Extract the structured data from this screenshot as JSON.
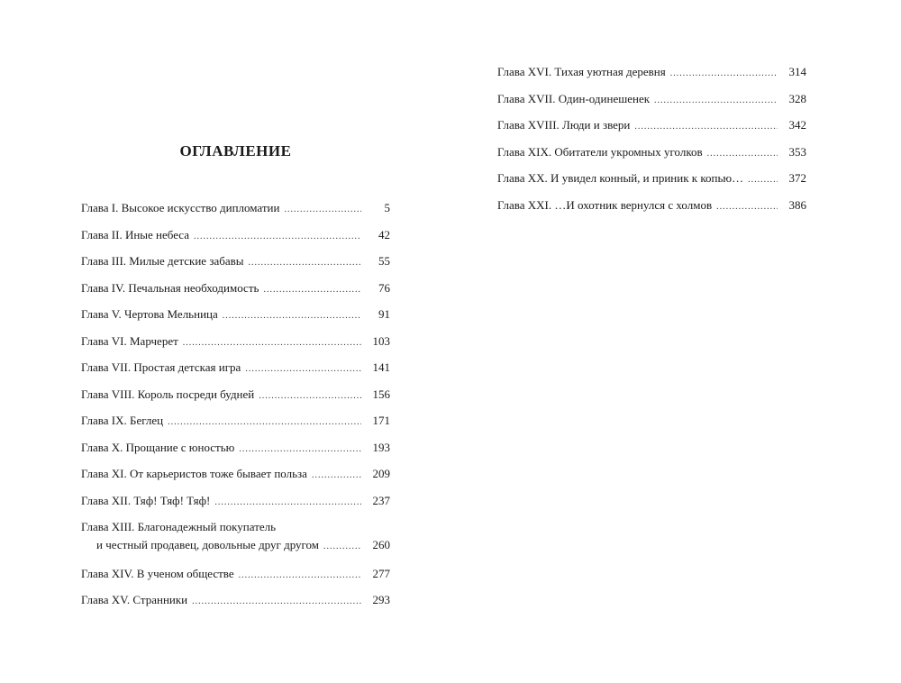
{
  "title": "ОГЛАВЛЕНИЕ",
  "left_entries": [
    {
      "lines": [
        "Глава I. Высокое искусство дипломатии"
      ],
      "page": "5"
    },
    {
      "lines": [
        "Глава II. Иные небеса"
      ],
      "page": "42"
    },
    {
      "lines": [
        "Глава III. Милые детские забавы"
      ],
      "page": "55"
    },
    {
      "lines": [
        "Глава IV. Печальная необходимость"
      ],
      "page": "76"
    },
    {
      "lines": [
        "Глава V. Чертова Мельница"
      ],
      "page": "91"
    },
    {
      "lines": [
        "Глава VI. Марчерет"
      ],
      "page": "103"
    },
    {
      "lines": [
        "Глава VII. Простая детская игра"
      ],
      "page": "141"
    },
    {
      "lines": [
        "Глава VIII. Король посреди будней"
      ],
      "page": "156"
    },
    {
      "lines": [
        "Глава IX. Беглец"
      ],
      "page": "171"
    },
    {
      "lines": [
        "Глава X. Прощание с юностью"
      ],
      "page": "193"
    },
    {
      "lines": [
        "Глава XI. От карьеристов тоже бывает польза"
      ],
      "page": "209"
    },
    {
      "lines": [
        "Глава XII. Тяф! Тяф! Тяф!"
      ],
      "page": "237"
    },
    {
      "lines": [
        "Глава XIII. Благонадежный покупатель",
        "и честный продавец, довольные друг другом"
      ],
      "page": "260"
    },
    {
      "lines": [
        "Глава XIV. В ученом обществе"
      ],
      "page": "277"
    },
    {
      "lines": [
        "Глава XV. Странники"
      ],
      "page": "293"
    }
  ],
  "right_entries": [
    {
      "lines": [
        "Глава XVI. Тихая уютная деревня"
      ],
      "page": "314"
    },
    {
      "lines": [
        "Глава XVII. Один-одинешенек"
      ],
      "page": "328"
    },
    {
      "lines": [
        "Глава XVIII. Люди и звери"
      ],
      "page": "342"
    },
    {
      "lines": [
        "Глава XIX. Обитатели укромных уголков"
      ],
      "page": "353"
    },
    {
      "lines": [
        "Глава XX. И увидел конный, и приник к копью…"
      ],
      "page": "372"
    },
    {
      "lines": [
        "Глава XXI. …И охотник вернулся с холмов"
      ],
      "page": "386"
    }
  ]
}
